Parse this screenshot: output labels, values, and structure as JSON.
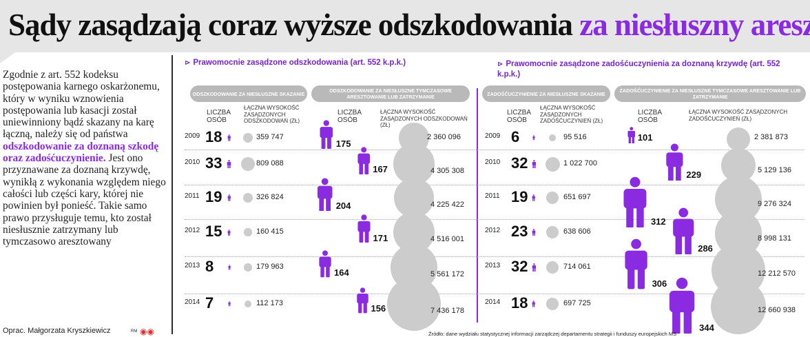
{
  "title": {
    "main": "Sądy zasądzają coraz wyższe odszkodowania",
    "accent": "za niesłuszny areszt"
  },
  "intro": {
    "part1": "Zgodnie z art. 552 kodeksu postępowania karnego oskarżonemu, który w wyniku wznowienia postępowania lub kasacji został uniewinniony bądź skazany na karę łączną, należy się od państwa",
    "highlight": "odszkodowanie za doznaną szkodę oraz zadośćuczynienie.",
    "part2": "Jest ono przyznawane za doznaną krzywdę, wynikłą z wykonania względem niego całości lub części kary, której nie powinien był ponieść. Takie samo prawo przysługuje temu, kto został niesłusznie zatrzymany lub tymczasowo aresztowany"
  },
  "sections": {
    "left_title": "Prawomocnie zasądzone odszkodowania (art. 552 k.p.k.)",
    "right_title": "Prawomocnie zasądzone zadośćuczynienia za doznaną krzywdę (art. 552 k.p.k.)"
  },
  "pills": {
    "p1": "ODSZKODOWANIE ZA NIESŁUSZNE SKAZANIE",
    "p2": "ODSZKODOWANIE ZA NIESŁUSZNE TYMCZASOWE ARESZTOWANIE LUB ZATRZYMANIE",
    "p3": "ZADOŚĆUCZYNIENIE ZA NIESŁUSZNE SKAZANIE",
    "p4": "ZADOŚĆUCZYNIENIE ZA NIESŁUSZNE TYMCZASOWE ARESZTOWANIE LUB ZATRZYMANIE"
  },
  "headers": {
    "count": "LICZBA OSÓB",
    "sum1": "ŁĄCZNA WYSOKOŚĆ ZASĄDZONYCH ODSZKODOWAŃ (zł)",
    "sum2": "ŁĄCZNA WYSOKOŚĆ ZASĄDZONYCH ODSZKODOWAŃ (zł)",
    "sum3": "ŁĄCZNA WYSOKOŚĆ ZASĄDZONYCH ZADOŚĆUCZYNIEŃ (zł)",
    "sum4": "ŁĄCZNA WYSOKOŚĆ ZASĄDZONYCH ZADOŚĆUCZYNIEŃ (zł)"
  },
  "chart_data": {
    "type": "table",
    "categories": [
      "2009",
      "2010",
      "2011",
      "2012",
      "2013",
      "2014"
    ],
    "series": [
      {
        "name": "ODSZKODOWANIE ZA NIESŁUSZNE SKAZANIE",
        "persons": [
          18,
          33,
          19,
          15,
          8,
          7
        ],
        "amounts": [
          359747,
          809088,
          326824,
          160415,
          179963,
          112173
        ],
        "persons_text": [
          "18",
          "33",
          "19",
          "15",
          "8",
          "7"
        ],
        "amounts_text": [
          "359 747",
          "809 088",
          "326 824",
          "160 415",
          "179 963",
          "112 173"
        ]
      },
      {
        "name": "ODSZKODOWANIE ZA NIESŁUSZNE TYMCZASOWE ARESZTOWANIE LUB ZATRZYMANIE",
        "persons": [
          175,
          167,
          204,
          171,
          164,
          156
        ],
        "amounts": [
          2360096,
          4305308,
          4225422,
          4516001,
          5561172,
          7436178
        ],
        "persons_text": [
          "175",
          "167",
          "204",
          "171",
          "164",
          "156"
        ],
        "amounts_text": [
          "2 360 096",
          "4 305 308",
          "4 225 422",
          "4 516 001",
          "5 561 172",
          "7 436 178"
        ]
      },
      {
        "name": "ZADOŚĆUCZYNIENIE ZA NIESŁUSZNE SKAZANIE",
        "persons": [
          6,
          32,
          19,
          23,
          32,
          18
        ],
        "amounts": [
          95516,
          1022700,
          651697,
          638606,
          714061,
          697725
        ],
        "persons_text": [
          "6",
          "32",
          "19",
          "23",
          "32",
          "18"
        ],
        "amounts_text": [
          "95 516",
          "1 022 700",
          "651 697",
          "638 606",
          "714 061",
          "697 725"
        ]
      },
      {
        "name": "ZADOŚĆUCZYNIENIE ZA NIESŁUSZNE TYMCZASOWE ARESZTOWANIE LUB ZATRZYMANIE",
        "persons": [
          101,
          229,
          312,
          286,
          306,
          344
        ],
        "amounts": [
          2381873,
          5129136,
          9276324,
          8998131,
          12212570,
          12660938
        ],
        "persons_text": [
          "101",
          "229",
          "312",
          "286",
          "306",
          "344"
        ],
        "amounts_text": [
          "2 381 873",
          "5 129 136",
          "9 276 324",
          "8 998 131",
          "12 212 570",
          "12 660 938"
        ]
      }
    ]
  },
  "colors": {
    "accent": "#8a2be2",
    "circle": "#cccccc",
    "pill": "#b9b9b9"
  },
  "footer": {
    "author": "Oprac. Małgorzata Kryszkiewicz",
    "rm": "RM",
    "source": "Źródło: dane wydziału statystycznej informacji zarządczej departamentu strategii i funduszy europejskich MS"
  }
}
